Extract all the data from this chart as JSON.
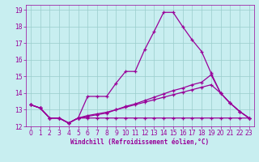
{
  "title": "",
  "xlabel": "Windchill (Refroidissement éolien,°C)",
  "bg_color": "#c8eef0",
  "line_color": "#990099",
  "grid_color": "#99cccc",
  "xlim": [
    -0.5,
    23.5
  ],
  "ylim": [
    12,
    19.3
  ],
  "xticks": [
    0,
    1,
    2,
    3,
    4,
    5,
    6,
    7,
    8,
    9,
    10,
    11,
    12,
    13,
    14,
    15,
    16,
    17,
    18,
    19,
    20,
    21,
    22,
    23
  ],
  "yticks": [
    12,
    13,
    14,
    15,
    16,
    17,
    18,
    19
  ],
  "line1_x": [
    0,
    1,
    2,
    3,
    4,
    5,
    6,
    7,
    8,
    9,
    10,
    11,
    12,
    13,
    14,
    15,
    16,
    17,
    18,
    19,
    20,
    21,
    22,
    23
  ],
  "line1_y": [
    13.3,
    13.1,
    12.5,
    12.5,
    12.2,
    12.5,
    13.8,
    13.8,
    13.8,
    14.6,
    15.3,
    15.3,
    16.6,
    17.7,
    18.85,
    18.85,
    18.0,
    17.2,
    16.5,
    15.2,
    14.0,
    13.4,
    12.9,
    12.5
  ],
  "line2_x": [
    0,
    1,
    2,
    3,
    4,
    5,
    6,
    7,
    8,
    9,
    10,
    11,
    12,
    13,
    14,
    15,
    16,
    17,
    18,
    19,
    20,
    21,
    22,
    23
  ],
  "line2_y": [
    13.3,
    13.1,
    12.5,
    12.5,
    12.2,
    12.5,
    12.5,
    12.5,
    12.5,
    12.5,
    12.5,
    12.5,
    12.5,
    12.5,
    12.5,
    12.5,
    12.5,
    12.5,
    12.5,
    12.5,
    12.5,
    12.5,
    12.5,
    12.5
  ],
  "line3_x": [
    0,
    1,
    2,
    3,
    4,
    5,
    6,
    7,
    8,
    9,
    10,
    11,
    12,
    13,
    14,
    15,
    16,
    17,
    18,
    19,
    20,
    21,
    22,
    23
  ],
  "line3_y": [
    13.3,
    13.1,
    12.5,
    12.5,
    12.2,
    12.5,
    12.65,
    12.75,
    12.85,
    13.0,
    13.15,
    13.3,
    13.45,
    13.6,
    13.75,
    13.9,
    14.05,
    14.2,
    14.35,
    14.5,
    14.0,
    13.4,
    12.9,
    12.5
  ],
  "line4_x": [
    0,
    1,
    2,
    3,
    4,
    5,
    6,
    7,
    8,
    9,
    10,
    11,
    12,
    13,
    14,
    15,
    16,
    17,
    18,
    19,
    20,
    21,
    22,
    23
  ],
  "line4_y": [
    13.3,
    13.1,
    12.5,
    12.5,
    12.2,
    12.5,
    12.6,
    12.7,
    12.8,
    13.0,
    13.2,
    13.35,
    13.55,
    13.75,
    13.95,
    14.15,
    14.3,
    14.5,
    14.65,
    15.1,
    14.0,
    13.4,
    12.9,
    12.5
  ],
  "tick_fontsize": 5.5,
  "xlabel_fontsize": 5.5,
  "marker_size": 3,
  "linewidth": 0.9
}
